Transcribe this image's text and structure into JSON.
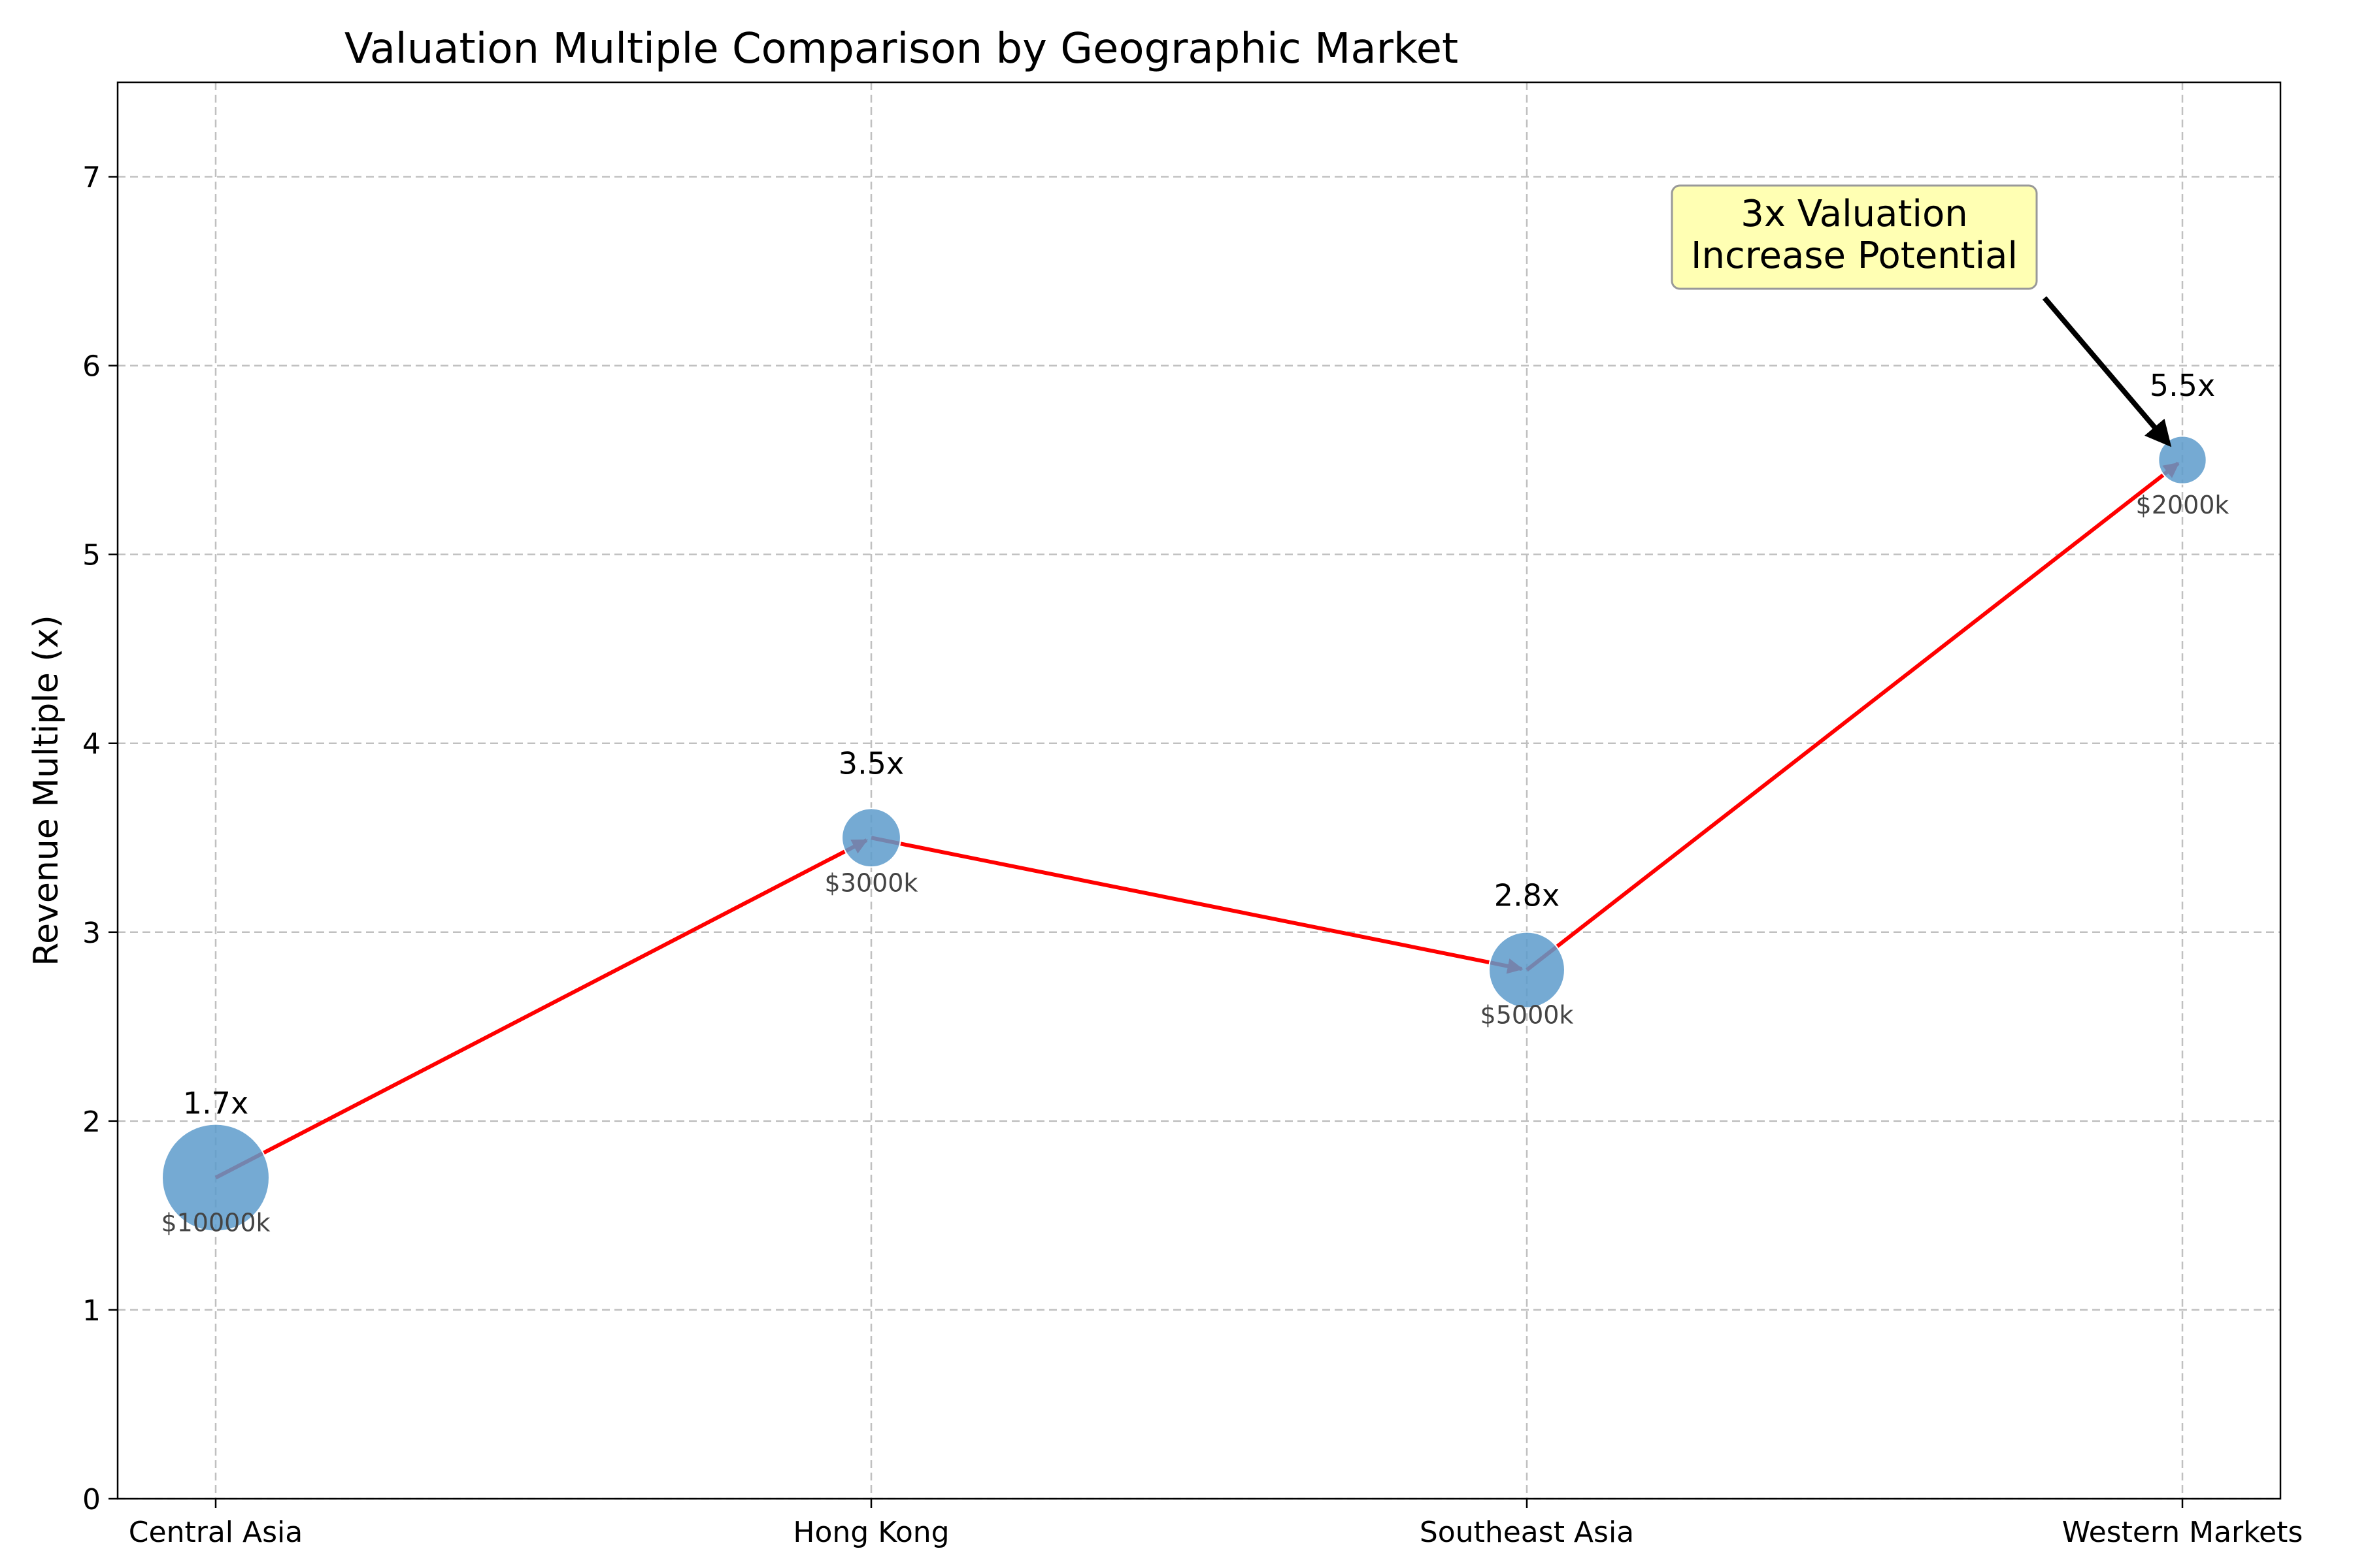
{
  "chart_data": {
    "type": "scatter",
    "title": "Valuation Multiple Comparison by Geographic Market",
    "xlabel": "",
    "ylabel": "Revenue Multiple (x)",
    "categories": [
      "Central Asia",
      "Hong Kong",
      "Southeast Asia",
      "Western Markets"
    ],
    "values": [
      1.7,
      3.5,
      2.8,
      5.5
    ],
    "value_labels": [
      "1.7x",
      "3.5x",
      "2.8x",
      "5.5x"
    ],
    "bubble_size_values": [
      10000,
      3000,
      5000,
      2000
    ],
    "bubble_size_labels": [
      "$10000k",
      "$3000k",
      "$5000k",
      "$2000k"
    ],
    "ylim": [
      0,
      7.5
    ],
    "y_ticks": [
      0,
      1,
      2,
      3,
      4,
      5,
      6,
      7
    ],
    "y_tick_labels": [
      "0",
      "1",
      "2",
      "3",
      "4",
      "5",
      "6",
      "7"
    ],
    "grid": true,
    "connector": "red arrows between consecutive markets",
    "annotation": {
      "text_lines": [
        "3x Valuation",
        "Increase Potential"
      ],
      "points_to": "Western Markets"
    },
    "colors": {
      "bubble": "#5d9bcb",
      "arrow": "#ff0000",
      "callout_fill": "#ffffb3",
      "callout_border": "#999999",
      "grid": "#c0c0c0"
    }
  }
}
